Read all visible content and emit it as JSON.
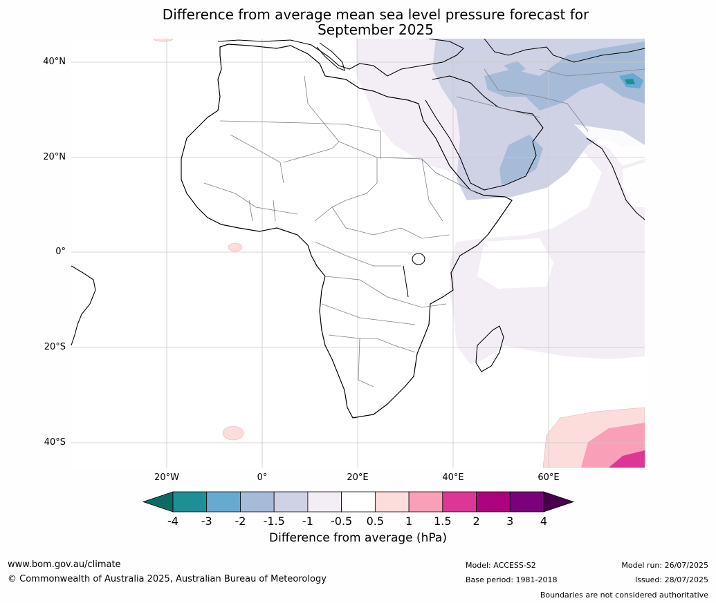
{
  "title_line1": "Difference from average mean sea level pressure forecast for",
  "title_line2": "September 2025",
  "lat_labels": [
    "40°N",
    "20°N",
    "0°",
    "20°S",
    "40°S"
  ],
  "lon_labels": [
    "20°W",
    "0°",
    "20°E",
    "40°E",
    "60°E"
  ],
  "colorbar": {
    "ticks": [
      "-4",
      "-3",
      "-2",
      "-1.5",
      "-1",
      "-0.5",
      "0.5",
      "1",
      "1.5",
      "2",
      "3",
      "4"
    ],
    "colors": [
      "#0b6b62",
      "#1f8f96",
      "#66a9d1",
      "#a6bbd8",
      "#cfd1e5",
      "#f3eef5",
      "#ffffff",
      "#fddcdc",
      "#f99fb8",
      "#dc3797",
      "#ad037e",
      "#7a017a",
      "#48004e"
    ],
    "label": "Difference from average (hPa)"
  },
  "footer": {
    "url": "www.bom.gov.au/climate",
    "copyright": "© Commonwealth of Australia 2025, Australian Bureau of Meteorology",
    "model": "Model: ACCESS-S2",
    "base_period": "Base period: 1981-2018",
    "model_run": "Model run: 26/07/2025",
    "issued": "Issued: 28/07/2025",
    "disclaimer": "Boundaries are not considered authoritative"
  }
}
